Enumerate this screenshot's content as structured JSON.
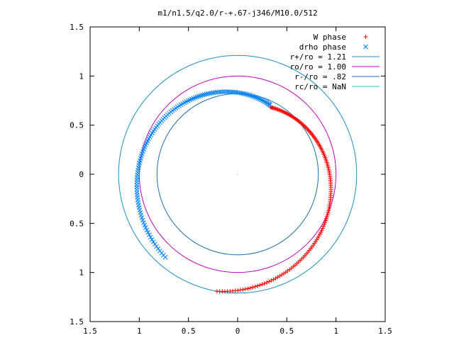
{
  "chart_data": {
    "type": "scatter",
    "title": "m1/n1.5/q2.0/r-+.67-j346/M10.0/512",
    "xlim": [
      -1.5,
      1.5
    ],
    "ylim": [
      -1.5,
      1.5
    ],
    "xticks": [
      -1.5,
      -1,
      -0.5,
      0,
      0.5,
      1,
      1.5
    ],
    "xtick_labels": [
      "1.5",
      "1",
      "0.5",
      "0",
      "0.5",
      "1",
      "1.5"
    ],
    "yticks": [
      1.5,
      1,
      0.5,
      0,
      -0.5,
      -1,
      -1.5
    ],
    "ytick_labels": [
      "1.5",
      "1",
      "0.5",
      "0",
      "0.5",
      "1",
      "1.5"
    ],
    "grid": false,
    "legend_position": "top-right",
    "series": [
      {
        "name": "W phase",
        "kind": "points",
        "marker": "+",
        "color": "#ff0000",
        "arc": {
          "r_start": 0.76,
          "r_end": 1.21,
          "angle_start_deg": 64,
          "angle_end_deg": -100,
          "count": 150
        }
      },
      {
        "name": "drho phase",
        "kind": "points",
        "marker": "x",
        "color": "#0080ff",
        "arc": {
          "r_start": 0.78,
          "r_end": 1.12,
          "angle_start_deg": 65,
          "angle_end_deg": 229,
          "count": 130
        }
      },
      {
        "name": "r+/ro = 1.21",
        "kind": "circle",
        "radius": 1.21,
        "color": "#1e90c8"
      },
      {
        "name": "ro/ro = 1.00",
        "kind": "circle",
        "radius": 1.0,
        "color": "#c000c0"
      },
      {
        "name": "r-/ro = .82",
        "kind": "circle",
        "radius": 0.82,
        "color": "#1e6eb8"
      },
      {
        "name": "rc/ro = NaN",
        "kind": "circle",
        "radius": null,
        "color": "#20c8c8"
      }
    ]
  }
}
